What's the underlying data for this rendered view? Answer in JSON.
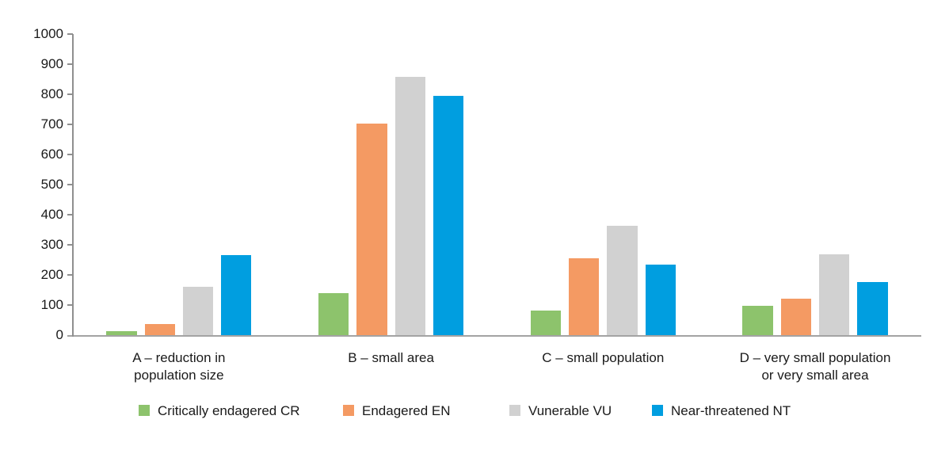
{
  "chart_data": {
    "type": "bar",
    "title": "",
    "xlabel": "",
    "ylabel": "",
    "ylim": [
      0,
      1000
    ],
    "yticks": [
      0,
      100,
      200,
      300,
      400,
      500,
      600,
      700,
      800,
      900,
      1000
    ],
    "grid": false,
    "legend_position": "bottom",
    "categories": [
      "A – reduction in\npopulation size",
      "B – small area",
      "C – small population",
      "D – very small population\nor very small area"
    ],
    "series": [
      {
        "name": "Critically endagered CR",
        "color": "#8DC36C",
        "values": [
          13,
          140,
          82,
          98
        ]
      },
      {
        "name": "Endagered EN",
        "color": "#F49A63",
        "values": [
          36,
          703,
          255,
          120
        ]
      },
      {
        "name": "Vunerable VU",
        "color": "#D1D1D1",
        "values": [
          160,
          857,
          363,
          269
        ]
      },
      {
        "name": "Near-threatened NT",
        "color": "#009EE0",
        "values": [
          267,
          796,
          233,
          177
        ]
      }
    ]
  }
}
